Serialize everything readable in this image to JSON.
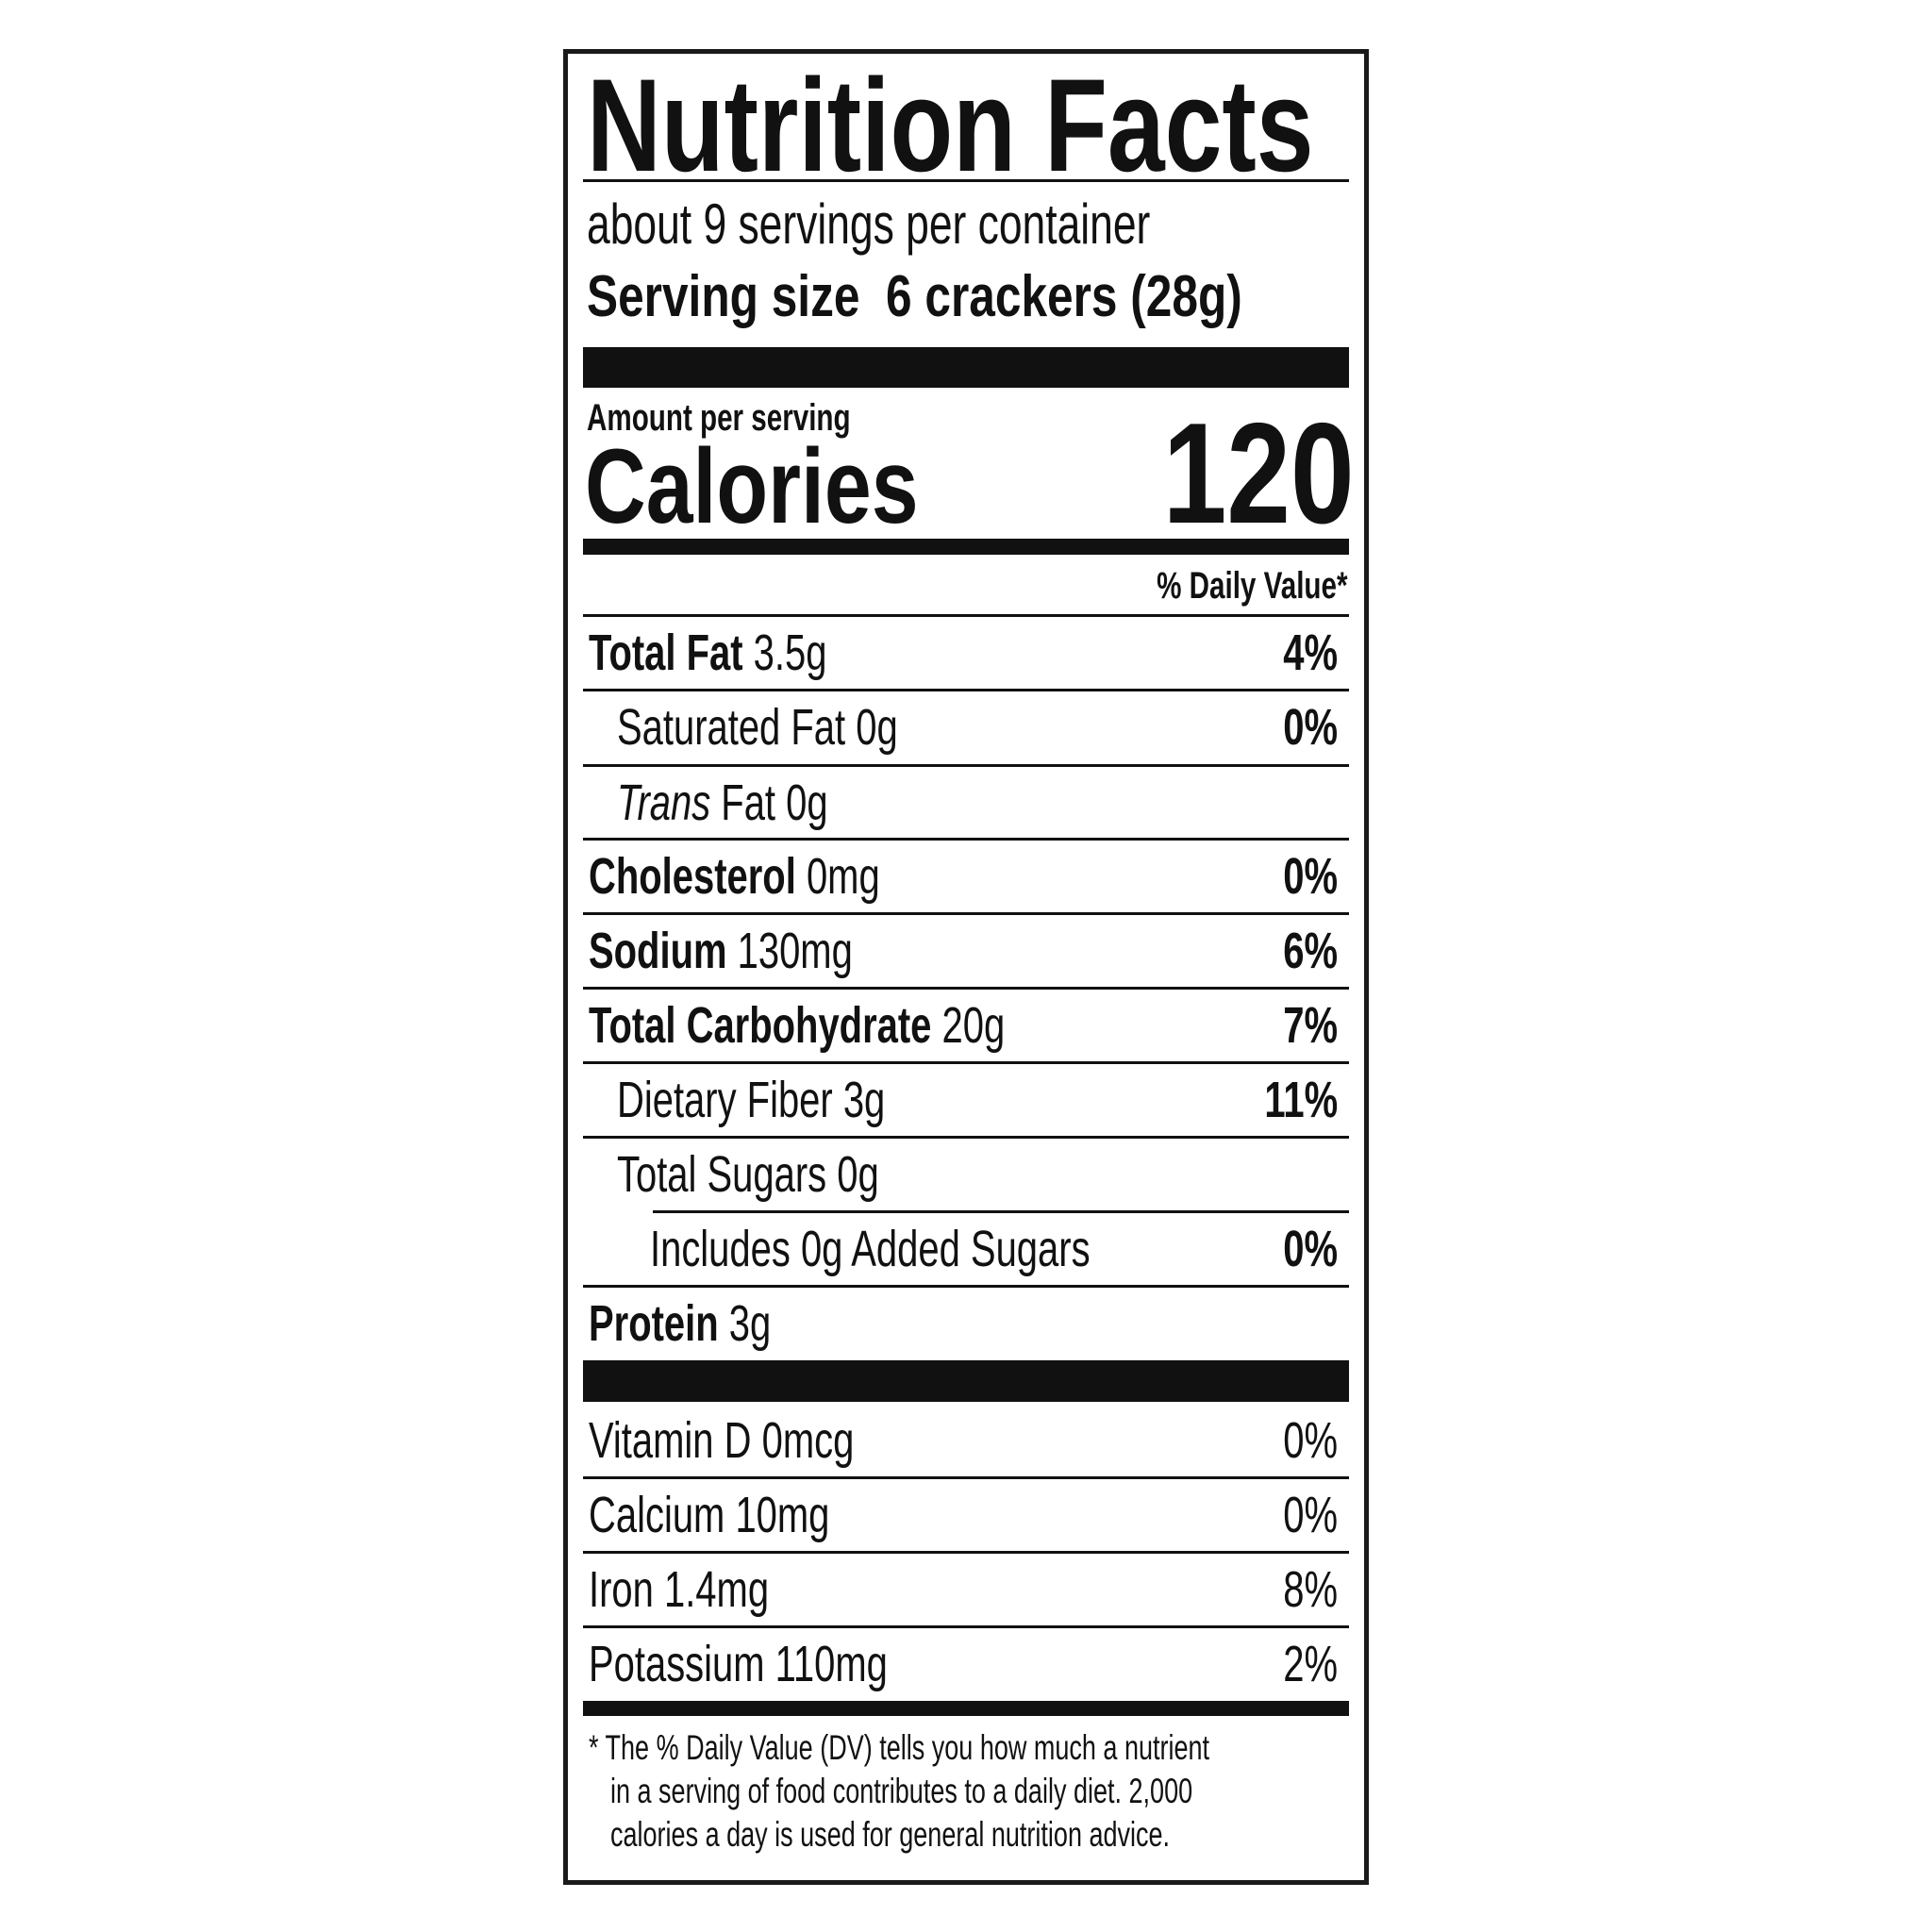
{
  "title": "Nutrition Facts",
  "servings_per_container": "about 9 servings per container",
  "serving_size": {
    "label": "Serving size",
    "value": "6 crackers (28g)"
  },
  "amount_per_serving": "Amount per serving",
  "calories": {
    "label": "Calories",
    "value": "120"
  },
  "dv_header": "% Daily Value*",
  "nutrients": [
    {
      "name": "Total Fat",
      "amount": "3.5g",
      "dv": "4%"
    },
    {
      "name": "Saturated Fat",
      "amount": "0g",
      "dv": "0%"
    },
    {
      "name": "Trans",
      "name_rest": "Fat",
      "amount": "0g",
      "dv": ""
    },
    {
      "name": "Cholesterol",
      "amount": "0mg",
      "dv": "0%"
    },
    {
      "name": "Sodium",
      "amount": "130mg",
      "dv": "6%"
    },
    {
      "name": "Total Carbohydrate",
      "amount": "20g",
      "dv": "7%"
    },
    {
      "name": "Dietary Fiber",
      "amount": "3g",
      "dv": "11%"
    },
    {
      "name": "Total Sugars",
      "amount": "0g",
      "dv": ""
    },
    {
      "name": "Includes 0g Added Sugars",
      "amount": "",
      "dv": "0%"
    },
    {
      "name": "Protein",
      "amount": "3g",
      "dv": ""
    }
  ],
  "vitamins": [
    {
      "name": "Vitamin D",
      "amount": "0mcg",
      "dv": "0%"
    },
    {
      "name": "Calcium",
      "amount": "10mg",
      "dv": "0%"
    },
    {
      "name": "Iron",
      "amount": "1.4mg",
      "dv": "8%"
    },
    {
      "name": "Potassium",
      "amount": "110mg",
      "dv": "2%"
    }
  ],
  "footnote": [
    "* The % Daily Value (DV) tells you how much a nutrient",
    "in a serving of food contributes to a daily diet. 2,000",
    "calories a day is used for general nutrition advice."
  ]
}
